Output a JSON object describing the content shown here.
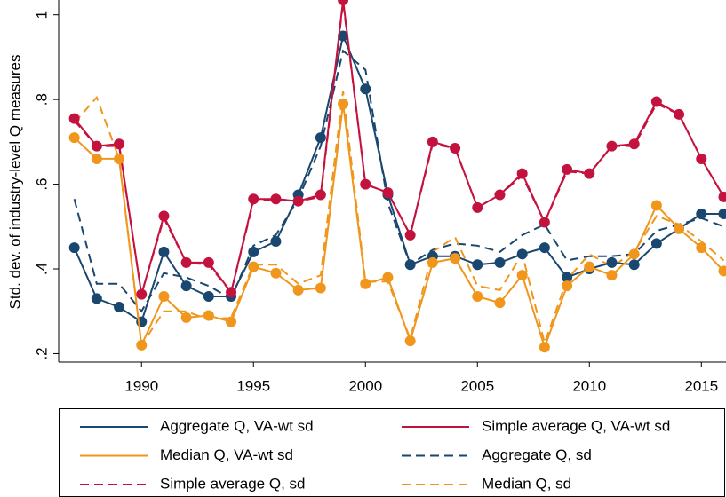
{
  "chart_data": {
    "type": "line",
    "y_label": "Std. dev. of industry-level Q measures",
    "x": [
      1987,
      1988,
      1989,
      1990,
      1991,
      1992,
      1993,
      1994,
      1995,
      1996,
      1997,
      1998,
      1999,
      2000,
      2001,
      2002,
      2003,
      2004,
      2005,
      2006,
      2007,
      2008,
      2009,
      2010,
      2011,
      2012,
      2013,
      2014,
      2015,
      2016
    ],
    "series": [
      {
        "name": "Aggregate Q, VA-wt sd",
        "color": "#1a476f",
        "dashed": false,
        "markers": true,
        "values": [
          0.45,
          0.33,
          0.31,
          0.275,
          0.44,
          0.36,
          0.335,
          0.335,
          0.44,
          0.465,
          0.575,
          0.71,
          0.95,
          0.825,
          0.575,
          0.41,
          0.43,
          0.43,
          0.41,
          0.415,
          0.435,
          0.45,
          0.38,
          0.4,
          0.415,
          0.41,
          0.46,
          0.495,
          0.53,
          0.53
        ]
      },
      {
        "name": "Simple average Q, VA-wt sd",
        "color": "#c4123f",
        "dashed": false,
        "markers": true,
        "values": [
          0.755,
          0.69,
          0.695,
          0.34,
          0.525,
          0.415,
          0.415,
          0.345,
          0.565,
          0.565,
          0.56,
          0.575,
          1.035,
          0.6,
          0.58,
          0.48,
          0.7,
          0.685,
          0.545,
          0.575,
          0.625,
          0.51,
          0.635,
          0.625,
          0.69,
          0.695,
          0.795,
          0.765,
          0.66,
          0.57
        ]
      },
      {
        "name": "Median Q, VA-wt sd",
        "color": "#f0961c",
        "dashed": false,
        "markers": true,
        "values": [
          0.71,
          0.66,
          0.66,
          0.22,
          0.335,
          0.285,
          0.29,
          0.275,
          0.405,
          0.39,
          0.35,
          0.355,
          0.79,
          0.365,
          0.38,
          0.23,
          0.415,
          0.425,
          0.335,
          0.32,
          0.385,
          0.215,
          0.36,
          0.405,
          0.385,
          0.435,
          0.55,
          0.495,
          0.45,
          0.395
        ]
      },
      {
        "name": "Aggregate Q, sd",
        "color": "#1a476f",
        "dashed": true,
        "markers": false,
        "values": [
          0.565,
          0.365,
          0.365,
          0.3,
          0.39,
          0.38,
          0.36,
          0.33,
          0.455,
          0.48,
          0.565,
          0.69,
          0.915,
          0.87,
          0.555,
          0.41,
          0.445,
          0.46,
          0.455,
          0.44,
          0.48,
          0.505,
          0.42,
          0.43,
          0.43,
          0.435,
          0.49,
          0.505,
          0.52,
          0.5
        ]
      },
      {
        "name": "Simple average Q, sd",
        "color": "#c4123f",
        "dashed": true,
        "markers": false,
        "values": [
          0.75,
          0.69,
          0.69,
          0.34,
          0.52,
          0.415,
          0.41,
          0.345,
          0.56,
          0.565,
          0.56,
          0.57,
          1.03,
          0.6,
          0.58,
          0.48,
          0.695,
          0.685,
          0.545,
          0.575,
          0.62,
          0.51,
          0.63,
          0.625,
          0.69,
          0.69,
          0.79,
          0.765,
          0.66,
          0.57
        ]
      },
      {
        "name": "Median Q, sd",
        "color": "#f0961c",
        "dashed": true,
        "markers": false,
        "values": [
          0.745,
          0.805,
          0.66,
          0.22,
          0.3,
          0.3,
          0.28,
          0.285,
          0.41,
          0.41,
          0.365,
          0.385,
          0.82,
          0.37,
          0.37,
          0.235,
          0.44,
          0.475,
          0.36,
          0.35,
          0.435,
          0.225,
          0.375,
          0.435,
          0.405,
          0.44,
          0.525,
          0.505,
          0.465,
          0.42
        ]
      }
    ],
    "xlim": [
      1986.3,
      2016.1
    ],
    "xticks": [
      1990,
      1995,
      2000,
      2005,
      2010,
      2015
    ],
    "ylim": [
      0.18,
      1.035
    ],
    "yticks": [
      {
        "value": 0.2,
        "label": ".2"
      },
      {
        "value": 0.4,
        "label": ".4"
      },
      {
        "value": 0.6,
        "label": ".6"
      },
      {
        "value": 0.8,
        "label": ".8"
      },
      1
    ],
    "grid": false,
    "legend": "bottom"
  }
}
